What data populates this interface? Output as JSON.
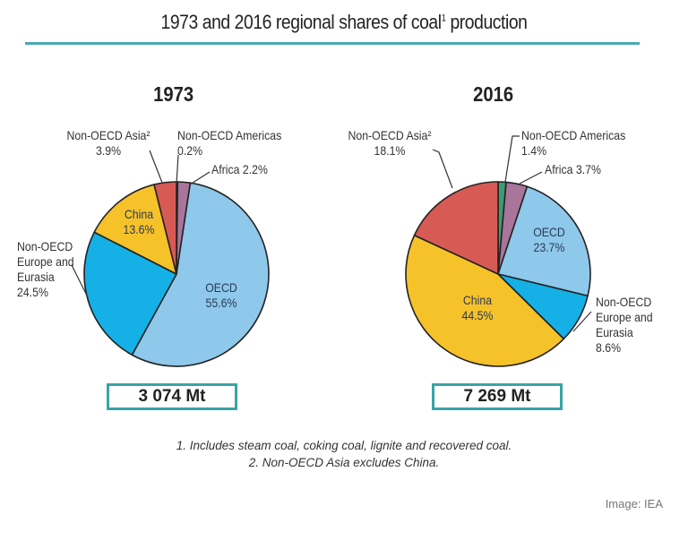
{
  "title_main": "1973 and 2016 regional shares of coal",
  "title_sup": "1",
  "title_end": " production",
  "accent_color": "#4aa8b0",
  "totals": [
    "3 074 Mt",
    "7 269 Mt"
  ],
  "notes": [
    "1. Includes steam coal, coking coal, lignite and recovered coal.",
    "2. Non-OECD Asia excludes China."
  ],
  "credit": "Image: IEA",
  "chart_data": [
    {
      "type": "pie",
      "title": "1973",
      "total": "3 074 Mt",
      "slices": [
        {
          "label": "Non-OECD Americas",
          "value": 0.2,
          "color": "#2e8b57"
        },
        {
          "label": "Africa",
          "value": 2.2,
          "color": "#a9759a"
        },
        {
          "label": "OECD",
          "value": 55.6,
          "color": "#8ec8ea"
        },
        {
          "label": "Non-OECD Europe and Eurasia",
          "value": 24.5,
          "color": "#15b0e6"
        },
        {
          "label": "China",
          "value": 13.6,
          "color": "#f6c22a"
        },
        {
          "label": "Non-OECD Asia",
          "label_sup": "2",
          "value": 3.9,
          "color": "#d85a55"
        }
      ]
    },
    {
      "type": "pie",
      "title": "2016",
      "total": "7 269 Mt",
      "slices": [
        {
          "label": "Non-OECD Americas",
          "value": 1.4,
          "color": "#3f9a72"
        },
        {
          "label": "Africa",
          "value": 3.7,
          "color": "#a9759a"
        },
        {
          "label": "OECD",
          "value": 23.7,
          "color": "#8ec8ea"
        },
        {
          "label": "Non-OECD Europe and Eurasia",
          "value": 8.6,
          "color": "#15b0e6"
        },
        {
          "label": "China",
          "value": 44.5,
          "color": "#f6c22a"
        },
        {
          "label": "Non-OECD Asia",
          "label_sup": "2",
          "value": 18.1,
          "color": "#d85a55"
        }
      ]
    }
  ]
}
